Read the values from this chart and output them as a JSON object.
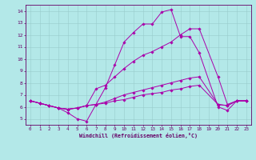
{
  "background_color": "#b3e8e8",
  "grid_color": "#99cccc",
  "line_color": "#aa00aa",
  "xlim": [
    -0.5,
    23.5
  ],
  "ylim": [
    4.5,
    14.5
  ],
  "xticks": [
    0,
    1,
    2,
    3,
    4,
    5,
    6,
    7,
    8,
    9,
    10,
    11,
    12,
    13,
    14,
    15,
    16,
    17,
    18,
    19,
    20,
    21,
    22,
    23
  ],
  "yticks": [
    5,
    6,
    7,
    8,
    9,
    10,
    11,
    12,
    13,
    14
  ],
  "xlabel": "Windchill (Refroidissement éolien,°C)",
  "lines": [
    {
      "x": [
        0,
        1,
        2,
        3,
        4,
        5,
        6,
        7,
        8,
        9,
        10,
        11,
        12,
        13,
        14,
        15,
        16,
        17,
        18,
        20,
        21,
        22,
        23
      ],
      "y": [
        6.5,
        6.3,
        6.1,
        5.9,
        5.5,
        5.0,
        4.8,
        6.2,
        7.6,
        9.5,
        11.4,
        12.2,
        12.9,
        12.9,
        13.9,
        14.1,
        11.85,
        11.85,
        10.5,
        6.0,
        5.7,
        6.5,
        6.5
      ]
    },
    {
      "x": [
        0,
        1,
        2,
        3,
        4,
        5,
        6,
        7,
        8,
        9,
        10,
        11,
        12,
        13,
        14,
        15,
        16,
        17,
        18,
        20,
        21,
        22,
        23
      ],
      "y": [
        6.5,
        6.3,
        6.1,
        5.9,
        5.8,
        5.9,
        6.1,
        7.5,
        7.8,
        8.5,
        9.2,
        9.8,
        10.3,
        10.6,
        11.0,
        11.4,
        12.0,
        12.5,
        12.5,
        8.5,
        6.2,
        6.5,
        6.5
      ]
    },
    {
      "x": [
        0,
        1,
        2,
        3,
        4,
        5,
        6,
        7,
        8,
        9,
        10,
        11,
        12,
        13,
        14,
        15,
        16,
        17,
        18,
        20,
        21,
        22,
        23
      ],
      "y": [
        6.5,
        6.3,
        6.1,
        5.9,
        5.8,
        5.9,
        6.1,
        6.2,
        6.4,
        6.7,
        7.0,
        7.2,
        7.4,
        7.6,
        7.8,
        8.0,
        8.2,
        8.4,
        8.5,
        6.2,
        6.1,
        6.5,
        6.5
      ]
    },
    {
      "x": [
        0,
        1,
        2,
        3,
        4,
        5,
        6,
        7,
        8,
        9,
        10,
        11,
        12,
        13,
        14,
        15,
        16,
        17,
        18,
        20,
        21,
        22,
        23
      ],
      "y": [
        6.5,
        6.3,
        6.1,
        5.9,
        5.8,
        5.9,
        6.1,
        6.2,
        6.3,
        6.5,
        6.6,
        6.8,
        7.0,
        7.1,
        7.2,
        7.4,
        7.5,
        7.7,
        7.8,
        6.2,
        6.1,
        6.5,
        6.5
      ]
    }
  ]
}
